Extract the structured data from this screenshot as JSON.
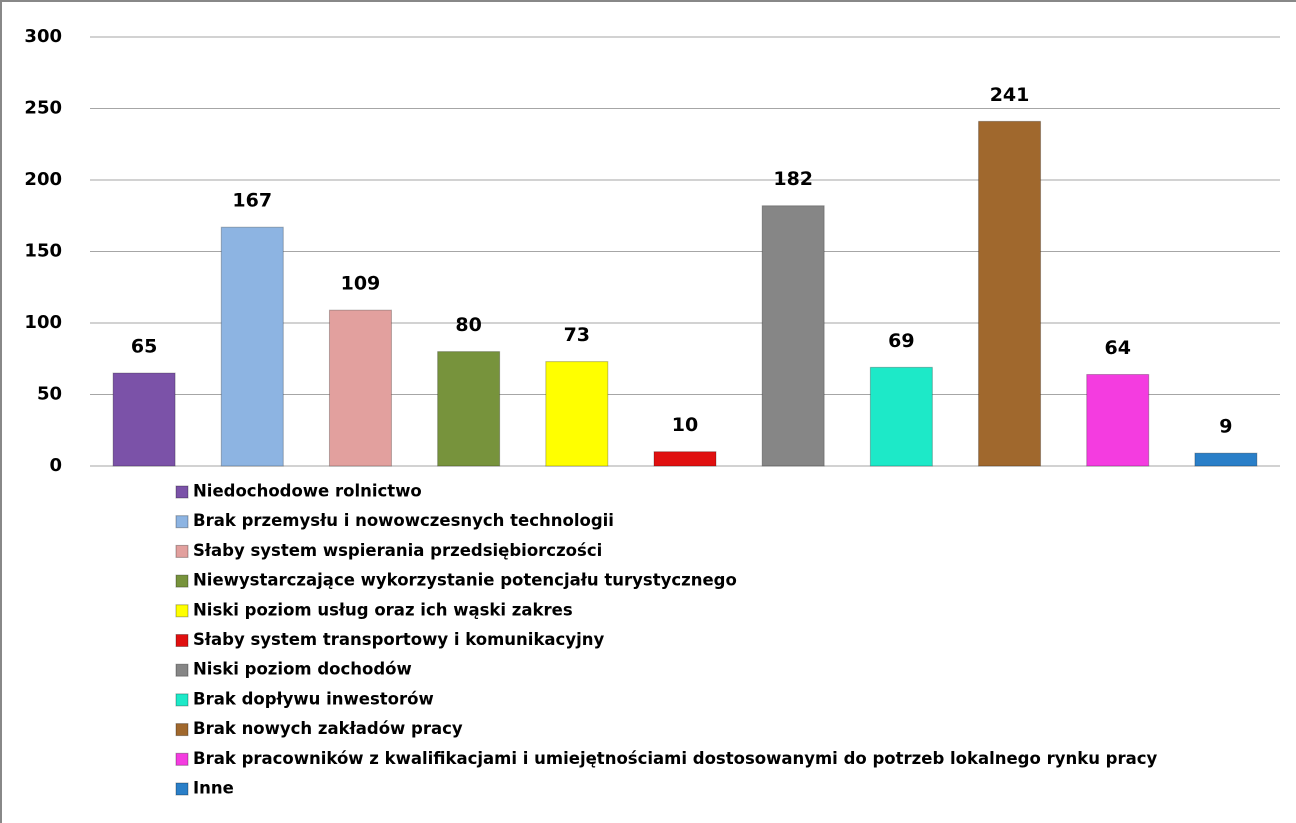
{
  "chart_data": {
    "type": "bar",
    "categories": [
      "Niedochodowe rolnictwo",
      "Brak przemysłu i nowowczesnych technologii",
      "Słaby system wspierania przedsiębiorczości",
      "Niewystarczające wykorzystanie potencjału turystycznego",
      "Niski poziom usług oraz ich wąski zakres",
      "Słaby system transportowy i komunikacyjny",
      "Niski poziom dochodów",
      "Brak dopływu inwestorów",
      "Brak nowych zakładów pracy",
      "Brak pracowników z kwalifikacjami i umiejętnościami dostosowanymi do potrzeb lokalnego rynku pracy",
      "Inne"
    ],
    "values": [
      65,
      167,
      109,
      80,
      73,
      10,
      182,
      69,
      241,
      64,
      9
    ],
    "colors": [
      "#7b52a8",
      "#8db4e2",
      "#e2a09e",
      "#77933c",
      "#ffff00",
      "#e01010",
      "#868686",
      "#1de9c8",
      "#a0682d",
      "#f43ce0",
      "#2a7fc8"
    ],
    "ylim": [
      0,
      300
    ],
    "yticks": [
      0,
      50,
      100,
      150,
      200,
      250,
      300
    ],
    "grid": true,
    "legend": "bottom"
  }
}
